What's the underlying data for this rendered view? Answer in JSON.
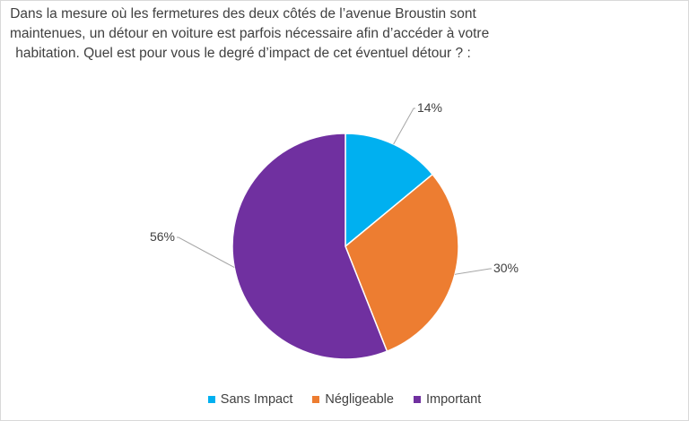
{
  "chart_data": {
    "type": "pie",
    "title_lines": [
      "Dans la mesure où les fermetures des deux côtés de l’avenue Broustin sont",
      "maintenues,  un détour en voiture est parfois nécessaire afin d’accéder à votre",
      "habitation. Quel est pour vous le degré d’impact de cet éventuel détour ? :"
    ],
    "categories": [
      "Sans Impact",
      "Négligeable",
      "Important"
    ],
    "values": [
      14,
      30,
      56
    ],
    "data_labels": [
      "14%",
      "30%",
      "56%"
    ],
    "colors": [
      "#00B0F0",
      "#ED7D31",
      "#7030A0"
    ],
    "legend_position": "bottom",
    "start_angle": "top, clockwise"
  }
}
